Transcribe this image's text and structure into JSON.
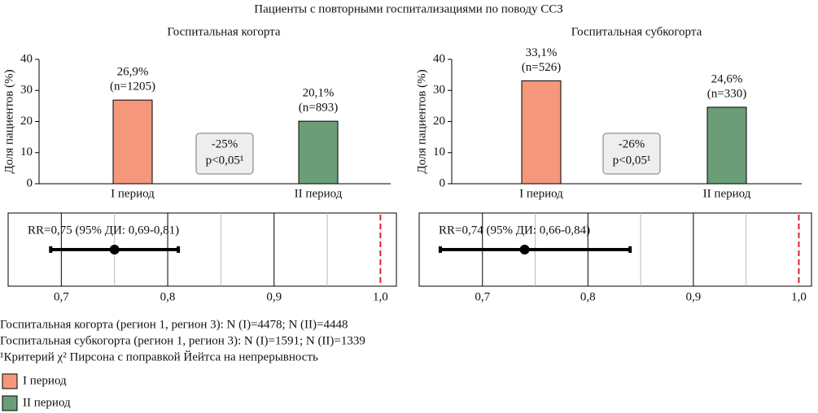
{
  "figure": {
    "title": "Пациенты с повторными госпитализациями по поводу ССЗ",
    "notes": [
      "Госпитальная когорта (регион 1, регион 3): N (I)=4478; N (II)=4448",
      "Госпитальная субкогорта (регион 1, регион 3): N (I)=1591; N (II)=1339",
      "¹Критерий χ² Пирсона с поправкой Йейтса на непрерывность"
    ],
    "legend": [
      {
        "label": "I период",
        "color": "#f4977a"
      },
      {
        "label": "II период",
        "color": "#6b9e78"
      }
    ]
  },
  "chart_data": [
    {
      "type": "bar",
      "title": "Госпитальная когорта",
      "ylabel": "Доля пациентов (%)",
      "categories": [
        "I период",
        "II период"
      ],
      "values": [
        26.9,
        20.1
      ],
      "value_labels": [
        "26,9%",
        "20,1%"
      ],
      "n_labels": [
        "(n=1205)",
        "(n=893)"
      ],
      "colors": [
        "#f4977a",
        "#6b9e78"
      ],
      "ylim": [
        0,
        40
      ],
      "yticks": [
        0,
        10,
        20,
        30,
        40
      ],
      "annotation": [
        "-25%",
        "p<0,05¹"
      ]
    },
    {
      "type": "bar",
      "title": "Госпитальная субкогорта",
      "ylabel": "Доля пациентов (%)",
      "categories": [
        "I период",
        "II период"
      ],
      "values": [
        33.1,
        24.6
      ],
      "value_labels": [
        "33,1%",
        "24,6%"
      ],
      "n_labels": [
        "(n=526)",
        "(n=330)"
      ],
      "colors": [
        "#f4977a",
        "#6b9e78"
      ],
      "ylim": [
        0,
        40
      ],
      "yticks": [
        0,
        10,
        20,
        30,
        40
      ],
      "annotation": [
        "-26%",
        "p<0,05¹"
      ]
    },
    {
      "type": "forest",
      "label": "RR=0,75 (95% ДИ: 0,69-0,81)",
      "estimate": 0.75,
      "ci": [
        0.69,
        0.81
      ],
      "xlim": [
        0.65,
        1.015
      ],
      "xticks": [
        {
          "value": 0.7,
          "label": "0,7"
        },
        {
          "value": 0.8,
          "label": "0,8"
        },
        {
          "value": 0.9,
          "label": "0,9"
        },
        {
          "value": 1.0,
          "label": "1,0"
        }
      ],
      "minor_grid": [
        0.75,
        0.85,
        0.95
      ],
      "reference_line": 1.0,
      "reference_color": "#e0202a"
    },
    {
      "type": "forest",
      "label": "RR=0,74 (95% ДИ: 0,66-0,84)",
      "estimate": 0.74,
      "ci": [
        0.66,
        0.84
      ],
      "xlim": [
        0.64,
        1.012
      ],
      "xticks": [
        {
          "value": 0.7,
          "label": "0,7"
        },
        {
          "value": 0.8,
          "label": "0,8"
        },
        {
          "value": 0.9,
          "label": "0,9"
        },
        {
          "value": 1.0,
          "label": "1,0"
        }
      ],
      "minor_grid": [
        0.75,
        0.85,
        0.95
      ],
      "reference_line": 1.0,
      "reference_color": "#e0202a"
    }
  ]
}
